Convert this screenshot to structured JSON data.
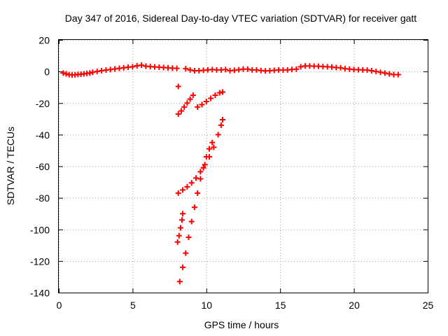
{
  "chart_data": {
    "type": "scatter",
    "title": "Day 347 of 2016, Sidereal Day-to-day VTEC variation (SDTVAR) for receiver gatt",
    "xlabel": "GPS time / hours",
    "ylabel": "SDTVAR / TECUs",
    "xlim": [
      0,
      25
    ],
    "ylim": [
      -140,
      20
    ],
    "xticks": [
      "0",
      "5",
      "10",
      "15",
      "20",
      "25"
    ],
    "yticks": [
      "20",
      "0",
      "-20",
      "-40",
      "-60",
      "-80",
      "-100",
      "-120",
      "-140"
    ],
    "grid": true,
    "legend": "none",
    "marker": "plus",
    "color": "#ff0000",
    "series": [
      {
        "values": [
          [
            0.3,
            -1
          ],
          [
            0.5,
            -1.5
          ],
          [
            0.7,
            -2
          ],
          [
            0.9,
            -2.2
          ],
          [
            1.1,
            -2.1
          ],
          [
            1.3,
            -1.9
          ],
          [
            1.5,
            -1.7
          ],
          [
            1.7,
            -1.5
          ],
          [
            1.9,
            -1.2
          ],
          [
            2.1,
            -1
          ],
          [
            2.3,
            -0.5
          ],
          [
            2.6,
            0
          ],
          [
            2.9,
            0.5
          ],
          [
            3.2,
            0.9
          ],
          [
            3.5,
            1.2
          ],
          [
            3.8,
            1.6
          ],
          [
            4.1,
            2
          ],
          [
            4.4,
            2.3
          ],
          [
            4.7,
            2.7
          ],
          [
            5.0,
            3
          ],
          [
            5.3,
            3.6
          ],
          [
            5.6,
            4
          ],
          [
            5.9,
            3.4
          ],
          [
            6.2,
            3.1
          ],
          [
            6.5,
            2.9
          ],
          [
            6.8,
            2.7
          ],
          [
            7.1,
            2.5
          ],
          [
            7.4,
            2.3
          ],
          [
            7.7,
            2.1
          ],
          [
            8.0,
            2
          ],
          [
            8.6,
            1.8
          ],
          [
            8.9,
            1
          ],
          [
            9.2,
            0.5
          ],
          [
            9.5,
            0.5
          ],
          [
            9.8,
            0.8
          ],
          [
            10.1,
            1
          ],
          [
            10.4,
            1.2
          ],
          [
            10.7,
            1
          ],
          [
            11.0,
            1
          ],
          [
            11.3,
            1.2
          ],
          [
            11.6,
            0.5
          ],
          [
            11.9,
            0.8
          ],
          [
            12.2,
            1.1
          ],
          [
            12.5,
            1.5
          ],
          [
            12.8,
            1.5
          ],
          [
            13.1,
            1
          ],
          [
            13.4,
            1
          ],
          [
            13.7,
            0.6
          ],
          [
            14.0,
            0.4
          ],
          [
            14.3,
            0.5
          ],
          [
            14.6,
            0.7
          ],
          [
            14.9,
            1
          ],
          [
            15.2,
            0.9
          ],
          [
            15.5,
            1
          ],
          [
            15.8,
            1.3
          ],
          [
            16.1,
            1.5
          ],
          [
            16.4,
            3
          ],
          [
            16.7,
            3.5
          ],
          [
            17.0,
            3.5
          ],
          [
            17.3,
            3.4
          ],
          [
            17.6,
            3.3
          ],
          [
            17.9,
            3.1
          ],
          [
            18.2,
            3
          ],
          [
            18.5,
            2.8
          ],
          [
            18.8,
            2.5
          ],
          [
            19.1,
            2.3
          ],
          [
            19.4,
            1.8
          ],
          [
            19.7,
            1.5
          ],
          [
            20.0,
            1.2
          ],
          [
            20.3,
            1.1
          ],
          [
            20.6,
            1
          ],
          [
            20.9,
            0.9
          ],
          [
            21.2,
            0.5
          ],
          [
            21.5,
            0
          ],
          [
            21.8,
            -0.5
          ],
          [
            22.1,
            -1
          ],
          [
            22.4,
            -1.5
          ],
          [
            22.7,
            -2
          ],
          [
            23.0,
            -2
          ],
          [
            8.1,
            -9.5
          ],
          [
            8.1,
            -27
          ],
          [
            8.3,
            -25
          ],
          [
            8.5,
            -22.5
          ],
          [
            8.7,
            -20
          ],
          [
            8.9,
            -17.5
          ],
          [
            9.1,
            -15
          ],
          [
            9.4,
            -22.5
          ],
          [
            9.7,
            -21
          ],
          [
            10.0,
            -19
          ],
          [
            10.3,
            -17
          ],
          [
            10.6,
            -15
          ],
          [
            10.9,
            -13.5
          ],
          [
            11.1,
            -13
          ],
          [
            8.1,
            -77
          ],
          [
            8.4,
            -75
          ],
          [
            8.7,
            -73
          ],
          [
            9.0,
            -70.5
          ],
          [
            9.3,
            -67.5
          ],
          [
            9.6,
            -63.5
          ],
          [
            9.9,
            -59
          ],
          [
            10.2,
            -54
          ],
          [
            10.5,
            -48
          ],
          [
            10.8,
            -40
          ],
          [
            11.0,
            -34
          ],
          [
            11.1,
            -30.5
          ],
          [
            8.05,
            -108
          ],
          [
            8.15,
            -104
          ],
          [
            8.25,
            -99
          ],
          [
            8.35,
            -94
          ],
          [
            8.4,
            -90
          ],
          [
            8.2,
            -133
          ],
          [
            8.4,
            -124
          ],
          [
            8.6,
            -115
          ],
          [
            8.8,
            -105
          ],
          [
            9.0,
            -95
          ],
          [
            9.2,
            -86
          ],
          [
            9.4,
            -77
          ],
          [
            9.6,
            -68
          ],
          [
            9.8,
            -61
          ],
          [
            10.0,
            -54
          ],
          [
            10.2,
            -49
          ],
          [
            10.4,
            -45
          ]
        ]
      }
    ]
  }
}
